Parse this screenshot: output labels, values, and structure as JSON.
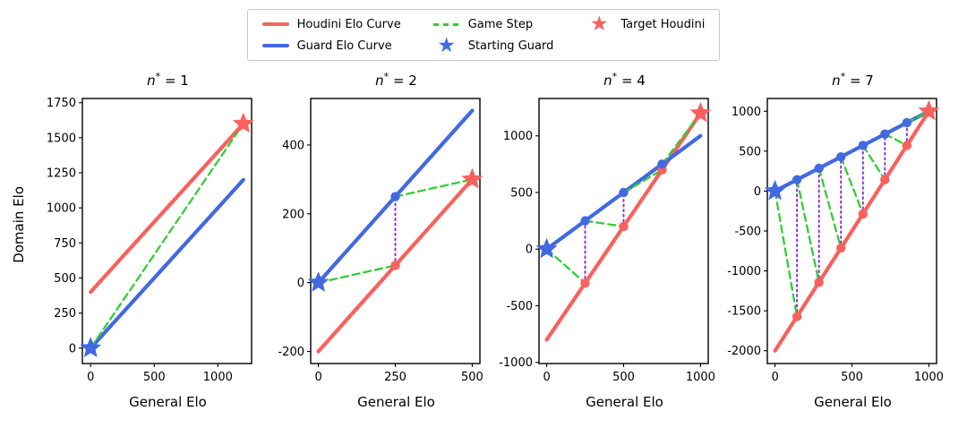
{
  "icons": {
    "star": "★"
  },
  "colors": {
    "houdini": "#f8615e",
    "guard": "#4169e1",
    "game_step": "#32cd32",
    "update": "#8a2be2",
    "spine": "#000000"
  },
  "legend": {
    "items": [
      {
        "label": "Houdini Elo Curve",
        "swatch": "line",
        "color": "houdini"
      },
      {
        "label": "Guard Elo Curve",
        "swatch": "line",
        "color": "guard"
      },
      {
        "label": "Game Step",
        "swatch": "dash",
        "color": "game_step"
      },
      {
        "label": "Starting Guard",
        "swatch": "star",
        "color": "guard"
      },
      {
        "label": "Target Houdini",
        "swatch": "star",
        "color": "houdini"
      }
    ]
  },
  "chart_data": [
    {
      "type": "line",
      "title": "n* = 1",
      "title_var": "n",
      "title_sup": "*",
      "title_rest": " = 1",
      "xlabel": "General Elo",
      "ylabel": "Domain Elo",
      "xlim": [
        -65,
        1265
      ],
      "ylim": [
        -110,
        1780
      ],
      "xticks": {
        "values": [
          0,
          500,
          1000
        ],
        "labels": [
          "0",
          "500",
          "1000"
        ]
      },
      "yticks": {
        "values": [
          0,
          250,
          500,
          750,
          1000,
          1250,
          1500,
          1750
        ],
        "labels": [
          "0",
          "250",
          "500",
          "750",
          "1000",
          "1250",
          "1500",
          "1750"
        ]
      },
      "houdini": {
        "x": [
          0,
          1200
        ],
        "y": [
          400,
          1600
        ]
      },
      "guard": {
        "x": [
          0,
          1200
        ],
        "y": [
          0,
          1200
        ]
      },
      "game_steps": [
        [
          [
            0,
            0
          ],
          [
            1200,
            1600
          ]
        ]
      ],
      "updates": [],
      "houdini_dots": [],
      "guard_dots": [],
      "start_guard": [
        0,
        0
      ],
      "target_houdini": [
        1200,
        1600
      ]
    },
    {
      "type": "line",
      "title": "n* = 2",
      "title_var": "n",
      "title_sup": "*",
      "title_rest": " = 2",
      "xlabel": "General Elo",
      "ylabel": "",
      "xlim": [
        -25,
        525
      ],
      "ylim": [
        -235,
        535
      ],
      "xticks": {
        "values": [
          0,
          250,
          500
        ],
        "labels": [
          "0",
          "250",
          "500"
        ]
      },
      "yticks": {
        "values": [
          -200,
          0,
          200,
          400
        ],
        "labels": [
          "-200",
          "0",
          "200",
          "400"
        ]
      },
      "houdini": {
        "x": [
          0,
          500
        ],
        "y": [
          -200,
          300
        ]
      },
      "guard": {
        "x": [
          0,
          500
        ],
        "y": [
          0,
          500
        ]
      },
      "game_steps": [
        [
          [
            0,
            0
          ],
          [
            250,
            50
          ]
        ],
        [
          [
            250,
            250
          ],
          [
            500,
            300
          ]
        ]
      ],
      "updates": [
        [
          [
            250,
            50
          ],
          [
            250,
            250
          ]
        ]
      ],
      "houdini_dots": [
        [
          250,
          50
        ]
      ],
      "guard_dots": [
        [
          250,
          250
        ]
      ],
      "start_guard": [
        0,
        0
      ],
      "target_houdini": [
        500,
        300
      ]
    },
    {
      "type": "line",
      "title": "n* = 4",
      "title_var": "n",
      "title_sup": "*",
      "title_rest": " = 4",
      "xlabel": "General Elo",
      "ylabel": "",
      "xlim": [
        -50,
        1050
      ],
      "ylim": [
        -1010,
        1330
      ],
      "xticks": {
        "values": [
          0,
          500,
          1000
        ],
        "labels": [
          "0",
          "500",
          "1000"
        ]
      },
      "yticks": {
        "values": [
          -1000,
          -500,
          0,
          500,
          1000
        ],
        "labels": [
          "-1000",
          "-500",
          "0",
          "500",
          "1000"
        ]
      },
      "houdini": {
        "x": [
          0,
          1000
        ],
        "y": [
          -800,
          1200
        ]
      },
      "guard": {
        "x": [
          0,
          1000
        ],
        "y": [
          0,
          1000
        ]
      },
      "game_steps": [
        [
          [
            0,
            0
          ],
          [
            250,
            -300
          ]
        ],
        [
          [
            250,
            250
          ],
          [
            500,
            200
          ]
        ],
        [
          [
            500,
            500
          ],
          [
            750,
            700
          ]
        ],
        [
          [
            750,
            750
          ],
          [
            1000,
            1200
          ]
        ]
      ],
      "updates": [
        [
          [
            250,
            -300
          ],
          [
            250,
            250
          ]
        ],
        [
          [
            500,
            200
          ],
          [
            500,
            500
          ]
        ],
        [
          [
            750,
            700
          ],
          [
            750,
            750
          ]
        ]
      ],
      "houdini_dots": [
        [
          250,
          -300
        ],
        [
          500,
          200
        ],
        [
          750,
          700
        ]
      ],
      "guard_dots": [
        [
          250,
          250
        ],
        [
          500,
          500
        ],
        [
          750,
          750
        ]
      ],
      "start_guard": [
        0,
        0
      ],
      "target_houdini": [
        1000,
        1200
      ]
    },
    {
      "type": "line",
      "title": "n* = 7",
      "title_var": "n",
      "title_sup": "*",
      "title_rest": " = 7",
      "xlabel": "General Elo",
      "ylabel": "",
      "xlim": [
        -50,
        1050
      ],
      "ylim": [
        -2160,
        1160
      ],
      "xticks": {
        "values": [
          0,
          500,
          1000
        ],
        "labels": [
          "0",
          "500",
          "1000"
        ]
      },
      "yticks": {
        "values": [
          -2000,
          -1500,
          -1000,
          -500,
          0,
          500,
          1000
        ],
        "labels": [
          "-2000",
          "-1500",
          "-1000",
          "-500",
          "0",
          "500",
          "1000"
        ]
      },
      "houdini": {
        "x": [
          0,
          1000
        ],
        "y": [
          -2000,
          1000
        ]
      },
      "guard": {
        "x": [
          0,
          1000
        ],
        "y": [
          0,
          1000
        ]
      },
      "game_steps": [
        [
          [
            0,
            0
          ],
          [
            142.86,
            -1571.43
          ]
        ],
        [
          [
            142.86,
            142.86
          ],
          [
            285.71,
            -1142.86
          ]
        ],
        [
          [
            285.71,
            285.71
          ],
          [
            428.57,
            -714.29
          ]
        ],
        [
          [
            428.57,
            428.57
          ],
          [
            571.43,
            -285.71
          ]
        ],
        [
          [
            571.43,
            571.43
          ],
          [
            714.29,
            142.86
          ]
        ],
        [
          [
            714.29,
            714.29
          ],
          [
            857.14,
            571.43
          ]
        ],
        [
          [
            857.14,
            857.14
          ],
          [
            1000,
            1000
          ]
        ]
      ],
      "updates": [
        [
          [
            142.86,
            -1571.43
          ],
          [
            142.86,
            142.86
          ]
        ],
        [
          [
            285.71,
            -1142.86
          ],
          [
            285.71,
            285.71
          ]
        ],
        [
          [
            428.57,
            -714.29
          ],
          [
            428.57,
            428.57
          ]
        ],
        [
          [
            571.43,
            -285.71
          ],
          [
            571.43,
            571.43
          ]
        ],
        [
          [
            714.29,
            142.86
          ],
          [
            714.29,
            714.29
          ]
        ],
        [
          [
            857.14,
            571.43
          ],
          [
            857.14,
            857.14
          ]
        ]
      ],
      "houdini_dots": [
        [
          142.86,
          -1571.43
        ],
        [
          285.71,
          -1142.86
        ],
        [
          428.57,
          -714.29
        ],
        [
          571.43,
          -285.71
        ],
        [
          714.29,
          142.86
        ],
        [
          857.14,
          571.43
        ]
      ],
      "guard_dots": [
        [
          142.86,
          142.86
        ],
        [
          285.71,
          285.71
        ],
        [
          428.57,
          428.57
        ],
        [
          571.43,
          571.43
        ],
        [
          714.29,
          714.29
        ],
        [
          857.14,
          857.14
        ]
      ],
      "start_guard": [
        0,
        0
      ],
      "target_houdini": [
        1000,
        1000
      ]
    }
  ]
}
